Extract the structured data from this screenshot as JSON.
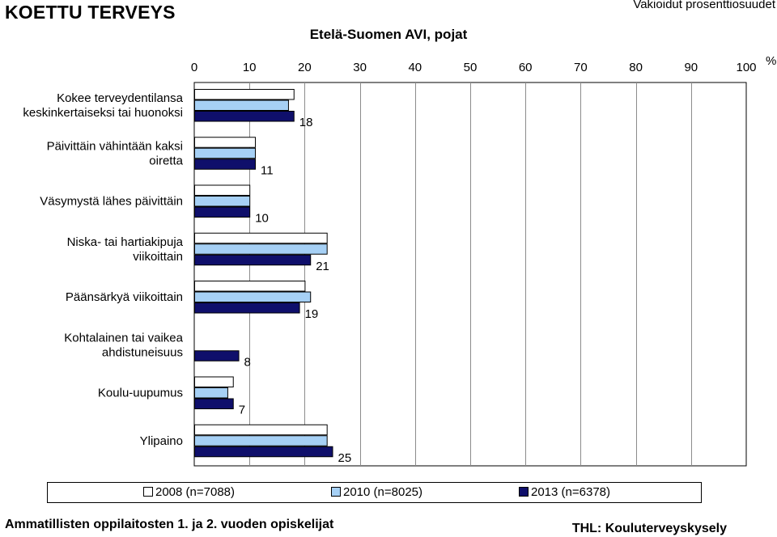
{
  "header": {
    "brand": "KOETTU TERVEYS",
    "subtitle": "Vakioidut prosenttiosuudet",
    "title": "Etelä-Suomen AVI, pojat"
  },
  "footer": {
    "left": "Ammatillisten oppilaitosten 1. ja 2. vuoden opiskelijat",
    "right": "THL: Kouluterveyskysely"
  },
  "colors": {
    "s2008": "#ffffff",
    "s2010": "#a6d0f5",
    "s2013": "#0f0f6b"
  },
  "chart_data": {
    "type": "bar",
    "orientation": "horizontal",
    "title": "Etelä-Suomen AVI, pojat",
    "xlim": [
      0,
      100
    ],
    "xticks": [
      0,
      10,
      20,
      30,
      40,
      50,
      60,
      70,
      80,
      90,
      100
    ],
    "xunit": "%",
    "grid": true,
    "legend_position": "bottom",
    "categories": [
      [
        "Kokee terveydentilansa",
        "keskinkertaiseksi tai huonoksi"
      ],
      [
        "Päivittäin vähintään kaksi",
        "oiretta"
      ],
      [
        "Väsymystä lähes päivittäin"
      ],
      [
        "Niska- tai hartiakipuja",
        "viikoittain"
      ],
      [
        "Päänsärkyä viikoittain"
      ],
      [
        "Kohtalainen tai vaikea",
        "ahdistuneisuus"
      ],
      [
        "Koulu-uupumus"
      ],
      [
        "Ylipaino"
      ]
    ],
    "series": [
      {
        "name": "2008 (n=7088)",
        "values": [
          18,
          11,
          10,
          24,
          20,
          null,
          7,
          24
        ]
      },
      {
        "name": "2010 (n=8025)",
        "values": [
          17,
          11,
          10,
          24,
          21,
          null,
          6,
          24
        ]
      },
      {
        "name": "2013 (n=6378)",
        "values": [
          18,
          11,
          10,
          21,
          19,
          8,
          7,
          25
        ]
      }
    ],
    "data_labels": [
      18,
      11,
      10,
      21,
      19,
      8,
      7,
      25
    ]
  }
}
